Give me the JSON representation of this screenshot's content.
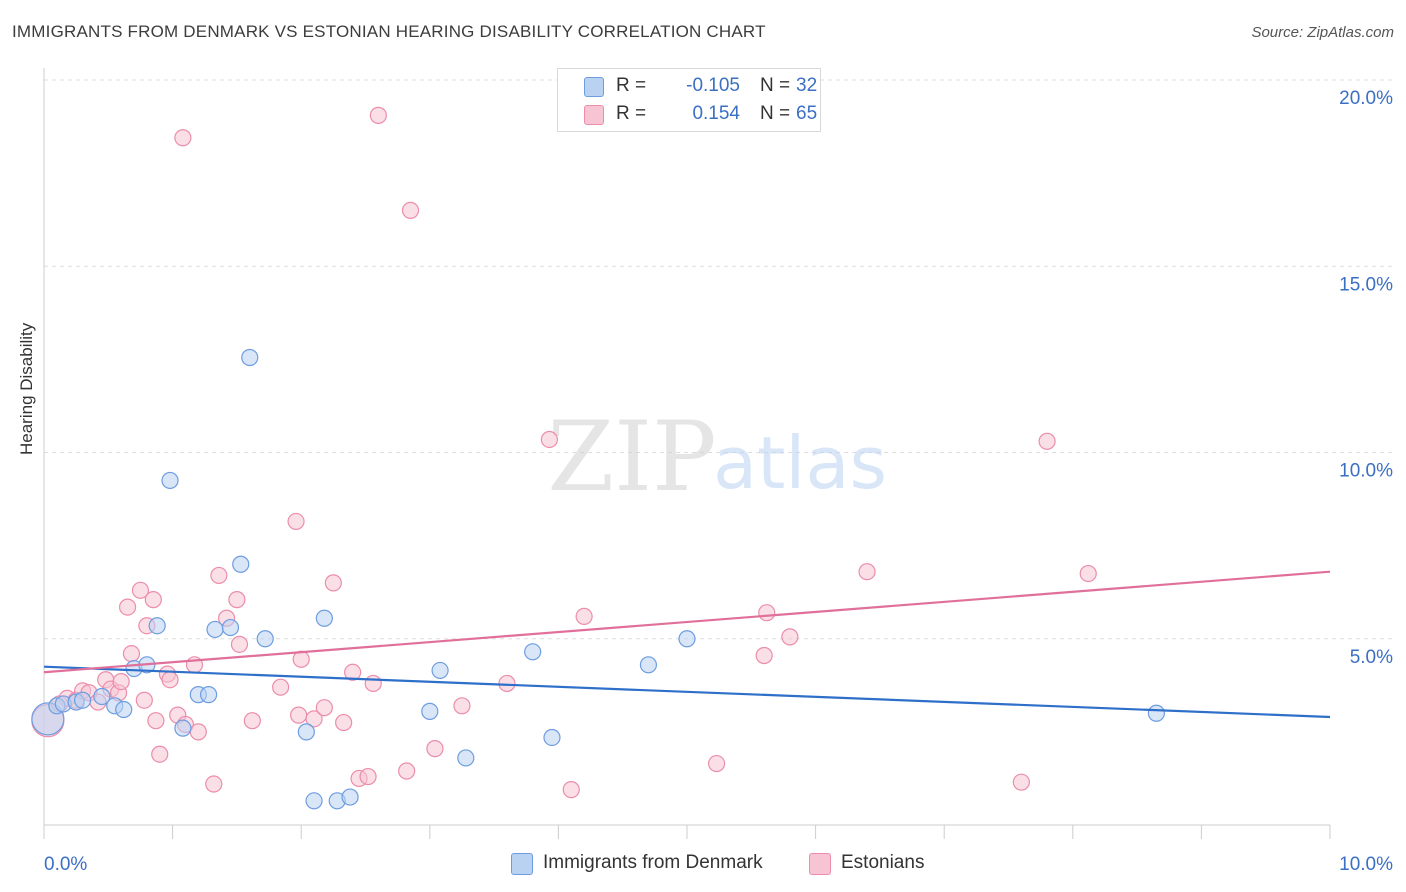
{
  "header": {
    "title": "IMMIGRANTS FROM DENMARK VS ESTONIAN HEARING DISABILITY CORRELATION CHART",
    "source": "Source: ZipAtlas.com"
  },
  "legend": {
    "series1": {
      "r_label": "R =",
      "r_value": "-0.105",
      "n_label": "N =",
      "n_value": "32"
    },
    "series2": {
      "r_label": "R =",
      "r_value": "0.154",
      "n_label": "N =",
      "n_value": "65"
    }
  },
  "bottom_legend": {
    "series1": "Immigrants from Denmark",
    "series2": "Estonians"
  },
  "colors": {
    "blue_fill": "#b9d2f2",
    "blue_stroke": "#6d9de0",
    "blue_line": "#2d6fc9",
    "pink_fill": "#f7c4d3",
    "pink_stroke": "#eb8dab",
    "pink_line": "#e0709a",
    "axis_text": "#3a6fc4",
    "grid": "#dddddd"
  },
  "watermark": {
    "zip": "ZIP",
    "atlas": "atlas"
  },
  "chart_data": {
    "type": "scatter",
    "title": "IMMIGRANTS FROM DENMARK VS ESTONIAN HEARING DISABILITY CORRELATION CHART",
    "xlabel": "",
    "ylabel": "Hearing Disability",
    "xlim": [
      0,
      10
    ],
    "ylim": [
      0,
      20
    ],
    "x_tick_labels": [
      "0.0%",
      "10.0%"
    ],
    "y_ticks": [
      5,
      10,
      15,
      20
    ],
    "y_tick_labels": [
      "5.0%",
      "10.0%",
      "15.0%",
      "20.0%"
    ],
    "grid": true,
    "legend_position": "top-center",
    "series": [
      {
        "name": "Immigrants from Denmark",
        "trend": {
          "x": [
            0,
            10
          ],
          "y": [
            4.25,
            2.9
          ]
        },
        "points": [
          {
            "x": 0.03,
            "y": 2.85,
            "large": true
          },
          {
            "x": 0.1,
            "y": 3.2
          },
          {
            "x": 0.15,
            "y": 3.25
          },
          {
            "x": 0.25,
            "y": 3.3
          },
          {
            "x": 0.3,
            "y": 3.35
          },
          {
            "x": 0.45,
            "y": 3.45
          },
          {
            "x": 0.55,
            "y": 3.2
          },
          {
            "x": 0.62,
            "y": 3.1
          },
          {
            "x": 0.7,
            "y": 4.2
          },
          {
            "x": 0.8,
            "y": 4.3
          },
          {
            "x": 0.88,
            "y": 5.35
          },
          {
            "x": 0.98,
            "y": 9.25
          },
          {
            "x": 1.08,
            "y": 2.6
          },
          {
            "x": 1.2,
            "y": 3.5
          },
          {
            "x": 1.28,
            "y": 3.5
          },
          {
            "x": 1.33,
            "y": 5.25
          },
          {
            "x": 1.45,
            "y": 5.3
          },
          {
            "x": 1.53,
            "y": 7.0
          },
          {
            "x": 1.6,
            "y": 12.55
          },
          {
            "x": 1.72,
            "y": 5.0
          },
          {
            "x": 2.04,
            "y": 2.5
          },
          {
            "x": 2.1,
            "y": 0.65
          },
          {
            "x": 2.18,
            "y": 5.55
          },
          {
            "x": 2.28,
            "y": 0.65
          },
          {
            "x": 2.38,
            "y": 0.75
          },
          {
            "x": 3.0,
            "y": 3.05
          },
          {
            "x": 3.08,
            "y": 4.15
          },
          {
            "x": 3.28,
            "y": 1.8
          },
          {
            "x": 3.8,
            "y": 4.65
          },
          {
            "x": 3.95,
            "y": 2.35
          },
          {
            "x": 4.7,
            "y": 4.3
          },
          {
            "x": 5.0,
            "y": 5.0
          },
          {
            "x": 8.65,
            "y": 3.0
          }
        ]
      },
      {
        "name": "Estonians",
        "trend": {
          "x": [
            0,
            10
          ],
          "y": [
            4.1,
            6.8
          ]
        },
        "points": [
          {
            "x": 0.03,
            "y": 2.8,
            "large": true
          },
          {
            "x": 0.12,
            "y": 3.25
          },
          {
            "x": 0.18,
            "y": 3.4
          },
          {
            "x": 0.25,
            "y": 3.35
          },
          {
            "x": 0.3,
            "y": 3.6
          },
          {
            "x": 0.35,
            "y": 3.55
          },
          {
            "x": 0.42,
            "y": 3.3
          },
          {
            "x": 0.48,
            "y": 3.9
          },
          {
            "x": 0.52,
            "y": 3.65
          },
          {
            "x": 0.58,
            "y": 3.55
          },
          {
            "x": 0.6,
            "y": 3.85
          },
          {
            "x": 0.65,
            "y": 5.85
          },
          {
            "x": 0.68,
            "y": 4.6
          },
          {
            "x": 0.75,
            "y": 6.3
          },
          {
            "x": 0.78,
            "y": 3.35
          },
          {
            "x": 0.8,
            "y": 5.35
          },
          {
            "x": 0.85,
            "y": 6.05
          },
          {
            "x": 0.87,
            "y": 2.8
          },
          {
            "x": 0.9,
            "y": 1.9
          },
          {
            "x": 0.96,
            "y": 4.05
          },
          {
            "x": 0.98,
            "y": 3.9
          },
          {
            "x": 1.04,
            "y": 2.95
          },
          {
            "x": 1.08,
            "y": 18.45
          },
          {
            "x": 1.1,
            "y": 2.7
          },
          {
            "x": 1.17,
            "y": 4.3
          },
          {
            "x": 1.2,
            "y": 2.5
          },
          {
            "x": 1.32,
            "y": 1.1
          },
          {
            "x": 1.36,
            "y": 6.7
          },
          {
            "x": 1.42,
            "y": 5.55
          },
          {
            "x": 1.5,
            "y": 6.05
          },
          {
            "x": 1.52,
            "y": 4.85
          },
          {
            "x": 1.62,
            "y": 2.8
          },
          {
            "x": 1.84,
            "y": 3.7
          },
          {
            "x": 1.96,
            "y": 8.15
          },
          {
            "x": 1.98,
            "y": 2.95
          },
          {
            "x": 2.0,
            "y": 4.45
          },
          {
            "x": 2.1,
            "y": 2.85
          },
          {
            "x": 2.18,
            "y": 3.15
          },
          {
            "x": 2.25,
            "y": 6.5
          },
          {
            "x": 2.33,
            "y": 2.75
          },
          {
            "x": 2.4,
            "y": 4.1
          },
          {
            "x": 2.45,
            "y": 1.25
          },
          {
            "x": 2.52,
            "y": 1.3
          },
          {
            "x": 2.56,
            "y": 3.8
          },
          {
            "x": 2.6,
            "y": 19.05
          },
          {
            "x": 2.82,
            "y": 1.45
          },
          {
            "x": 2.85,
            "y": 16.5
          },
          {
            "x": 3.04,
            "y": 2.05
          },
          {
            "x": 3.25,
            "y": 3.2
          },
          {
            "x": 3.6,
            "y": 3.8
          },
          {
            "x": 3.93,
            "y": 10.35
          },
          {
            "x": 4.1,
            "y": 0.95
          },
          {
            "x": 4.2,
            "y": 5.6
          },
          {
            "x": 5.23,
            "y": 1.65
          },
          {
            "x": 5.6,
            "y": 4.55
          },
          {
            "x": 5.62,
            "y": 5.7
          },
          {
            "x": 5.8,
            "y": 5.05
          },
          {
            "x": 6.4,
            "y": 6.8
          },
          {
            "x": 7.6,
            "y": 1.15
          },
          {
            "x": 7.8,
            "y": 10.3
          },
          {
            "x": 8.12,
            "y": 6.75
          }
        ]
      }
    ]
  }
}
